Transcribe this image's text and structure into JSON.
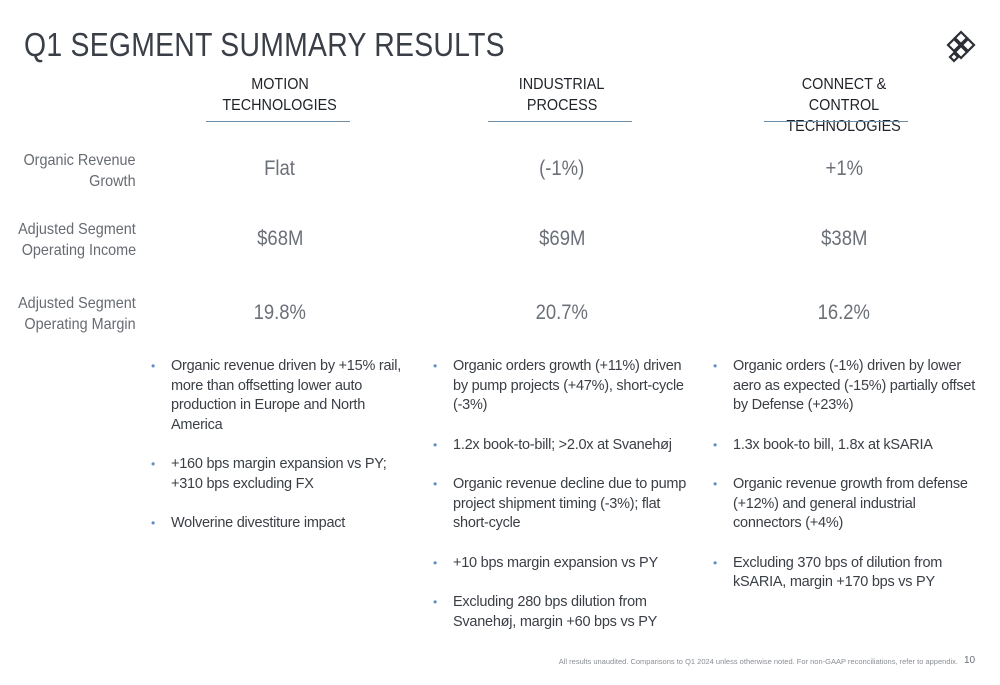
{
  "title": "Q1 SEGMENT SUMMARY RESULTS",
  "columns": [
    {
      "header_line1": "MOTION",
      "header_line2": "TECHNOLOGIES",
      "organic_revenue_growth": "Flat",
      "adj_op_income": "$68M",
      "adj_op_margin": "19.8%",
      "bullets": [
        "Organic revenue driven by +15% rail, more than offsetting lower auto production in Europe and North America",
        "+160 bps margin expansion vs PY; +310 bps excluding FX",
        "Wolverine divestiture impact"
      ]
    },
    {
      "header_line1": "INDUSTRIAL",
      "header_line2": "PROCESS",
      "organic_revenue_growth": "(-1%)",
      "adj_op_income": "$69M",
      "adj_op_margin": "20.7%",
      "bullets": [
        "Organic orders growth (+11%) driven by pump projects (+47%), short-cycle (-3%)",
        "1.2x book-to-bill; >2.0x at Svanehøj",
        "Organic revenue decline due to pump project shipment timing (-3%); flat short-cycle",
        "+10 bps margin expansion vs PY",
        "Excluding 280 bps dilution from Svanehøj, margin +60 bps vs PY"
      ]
    },
    {
      "header_line1": "CONNECT & CONTROL",
      "header_line2": "TECHNOLOGIES",
      "organic_revenue_growth": "+1%",
      "adj_op_income": "$38M",
      "adj_op_margin": "16.2%",
      "bullets": [
        "Organic orders (-1%) driven by lower aero as expected (-15%) partially offset by Defense (+23%)",
        "1.3x book-to bill, 1.8x at kSARIA",
        "Organic revenue growth from defense (+12%) and general industrial connectors (+4%)",
        "Excluding 370 bps of dilution from kSARIA, margin +170 bps vs PY"
      ]
    }
  ],
  "row_labels": {
    "organic_revenue_growth": [
      "Organic Revenue",
      "Growth"
    ],
    "adj_op_income": [
      "Adjusted Segment",
      "Operating Income"
    ],
    "adj_op_margin": [
      "Adjusted Segment",
      "Operating Margin"
    ]
  },
  "footnote": "All results unaudited. Comparisons to Q1 2024 unless otherwise noted. For non-GAAP reconciliations, refer to appendix.",
  "page_number": "10",
  "icons": {
    "logo": "diamond-lattice-logo-icon",
    "bullet": "bullet-dot-icon"
  },
  "colors": {
    "rule": "#6f8fa8",
    "bullet": "#5f8fc2",
    "title": "#3a3f47"
  }
}
